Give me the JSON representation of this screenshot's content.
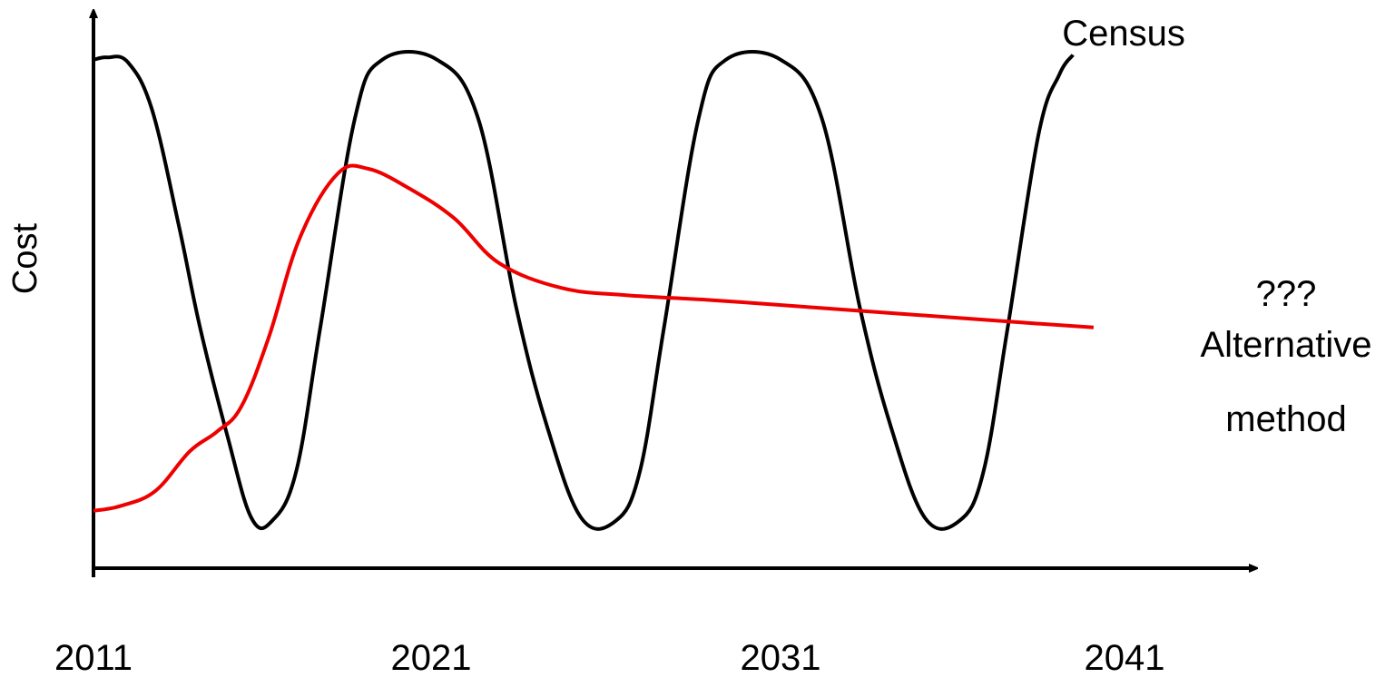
{
  "chart_data": {
    "type": "line",
    "title": "",
    "xlabel": "",
    "ylabel": "Cost",
    "x_ticks": [
      "2011",
      "2021",
      "2031",
      "2041"
    ],
    "xlim": [
      2011,
      2043
    ],
    "ylim": [
      0,
      10
    ],
    "grid": false,
    "legend": "none",
    "y_ticks_shown": false,
    "annotation": "???",
    "series": [
      {
        "name": "Census",
        "color": "#000000",
        "points": [
          [
            2011.0,
            9.8
          ],
          [
            2011.4,
            9.85
          ],
          [
            2012.0,
            9.75
          ],
          [
            2012.7,
            8.8
          ],
          [
            2013.5,
            6.4
          ],
          [
            2014.1,
            4.4
          ],
          [
            2014.9,
            2.2
          ],
          [
            2015.6,
            0.55
          ],
          [
            2016.2,
            0.5
          ],
          [
            2016.9,
            1.5
          ],
          [
            2017.6,
            4.4
          ],
          [
            2018.6,
            8.6
          ],
          [
            2019.4,
            9.8
          ],
          [
            2021.0,
            9.8
          ],
          [
            2022.2,
            8.6
          ],
          [
            2023.3,
            4.8
          ],
          [
            2024.2,
            2.4
          ],
          [
            2025.2,
            0.55
          ],
          [
            2026.2,
            0.5
          ],
          [
            2026.9,
            1.5
          ],
          [
            2027.6,
            4.4
          ],
          [
            2028.6,
            8.6
          ],
          [
            2029.4,
            9.8
          ],
          [
            2031.0,
            9.8
          ],
          [
            2032.2,
            8.6
          ],
          [
            2033.3,
            4.8
          ],
          [
            2034.2,
            2.4
          ],
          [
            2035.2,
            0.55
          ],
          [
            2036.2,
            0.5
          ],
          [
            2036.9,
            1.5
          ],
          [
            2037.6,
            4.4
          ],
          [
            2038.5,
            8.3
          ],
          [
            2039.1,
            9.5
          ],
          [
            2039.5,
            9.9
          ]
        ]
      },
      {
        "name": "Alternative method",
        "color": "#ee0000",
        "points": [
          [
            2011.0,
            0.7
          ],
          [
            2011.8,
            0.8
          ],
          [
            2012.8,
            1.1
          ],
          [
            2013.8,
            1.9
          ],
          [
            2014.6,
            2.3
          ],
          [
            2015.3,
            2.8
          ],
          [
            2016.1,
            4.2
          ],
          [
            2017.0,
            6.2
          ],
          [
            2018.1,
            7.5
          ],
          [
            2019.0,
            7.6
          ],
          [
            2020.2,
            7.2
          ],
          [
            2021.5,
            6.6
          ],
          [
            2022.8,
            5.7
          ],
          [
            2024.6,
            5.2
          ],
          [
            2026.5,
            5.05
          ],
          [
            2029.0,
            4.95
          ],
          [
            2032.0,
            4.8
          ],
          [
            2035.0,
            4.65
          ],
          [
            2038.0,
            4.5
          ],
          [
            2040.1,
            4.4
          ]
        ]
      }
    ],
    "labels": {
      "census": "Census",
      "alternative_line1": "Alternative",
      "alternative_line2": "method"
    }
  }
}
